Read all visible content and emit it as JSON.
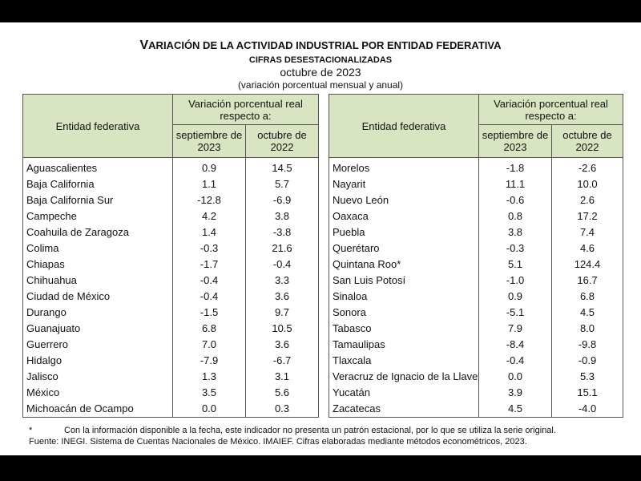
{
  "header": {
    "title": "VARIACIÓN DE LA ACTIVIDAD INDUSTRIAL POR ENTIDAD FEDERATIVA",
    "subtitle": "CIFRAS DESESTACIONALIZADAS",
    "period": "octubre de 2023",
    "unit": "(variación porcentual mensual y anual)"
  },
  "table": {
    "columns": {
      "entity": "Entidad federativa",
      "group": "Variación porcentual real respecto a:",
      "month": "septiembre de 2023",
      "year": "octubre de 2022"
    },
    "left_rows": [
      [
        "Aguascalientes",
        "0.9",
        "14.5"
      ],
      [
        "Baja California",
        "1.1",
        "5.7"
      ],
      [
        "Baja California Sur",
        "-12.8",
        "-6.9"
      ],
      [
        "Campeche",
        "4.2",
        "3.8"
      ],
      [
        "Coahuila de Zaragoza",
        "1.4",
        "-3.8"
      ],
      [
        "Colima",
        "-0.3",
        "21.6"
      ],
      [
        "Chiapas",
        "-1.7",
        "-0.4"
      ],
      [
        "Chihuahua",
        "-0.4",
        "3.3"
      ],
      [
        "Ciudad de México",
        "-0.4",
        "3.6"
      ],
      [
        "Durango",
        "-1.5",
        "9.7"
      ],
      [
        "Guanajuato",
        "6.8",
        "10.5"
      ],
      [
        "Guerrero",
        "7.0",
        "3.6"
      ],
      [
        "Hidalgo",
        "-7.9",
        "-6.7"
      ],
      [
        "Jalisco",
        "1.3",
        "3.1"
      ],
      [
        "México",
        "3.5",
        "5.6"
      ],
      [
        "Michoacán de Ocampo",
        "0.0",
        "0.3"
      ]
    ],
    "right_rows": [
      [
        "Morelos",
        "-1.8",
        "-2.6"
      ],
      [
        "Nayarit",
        "11.1",
        "10.0"
      ],
      [
        "Nuevo León",
        "-0.6",
        "2.6"
      ],
      [
        "Oaxaca",
        "0.8",
        "17.2"
      ],
      [
        "Puebla",
        "3.8",
        "7.4"
      ],
      [
        "Querétaro",
        "-0.3",
        "4.6"
      ],
      [
        "Quintana Roo*",
        "5.1",
        "124.4"
      ],
      [
        "San Luis Potosí",
        "-1.0",
        "16.7"
      ],
      [
        "Sinaloa",
        "0.9",
        "6.8"
      ],
      [
        "Sonora",
        "-5.1",
        "4.5"
      ],
      [
        "Tabasco",
        "7.9",
        "8.0"
      ],
      [
        "Tamaulipas",
        "-8.4",
        "-9.8"
      ],
      [
        "Tlaxcala",
        "-0.4",
        "-0.9"
      ],
      [
        "Veracruz de Ignacio de la Llave",
        "0.0",
        "5.3"
      ],
      [
        "Yucatán",
        "3.9",
        "15.1"
      ],
      [
        "Zacatecas",
        "4.5",
        "-4.0"
      ]
    ]
  },
  "footnote": {
    "mark": "*",
    "text": "Con la información disponible a la fecha, este indicador no presenta un patrón estacional, por lo que se utiliza la serie original."
  },
  "source": "Fuente: INEGI. Sistema de Cuentas Nacionales de México. IMAIEF. Cifras elaboradas mediante métodos econométricos, 2023."
}
